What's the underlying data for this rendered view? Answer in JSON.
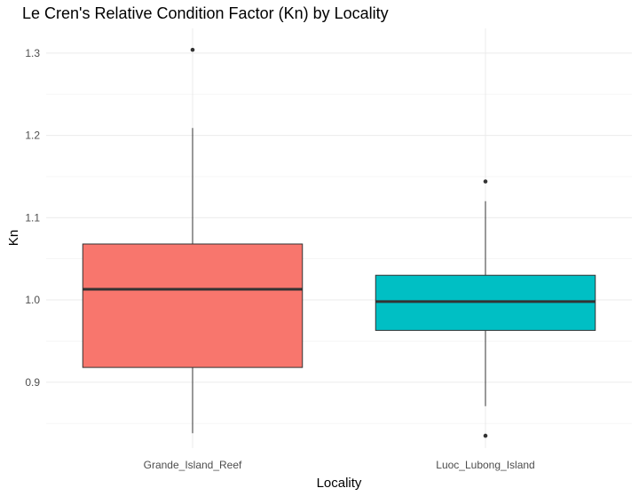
{
  "chart_data": {
    "type": "boxplot",
    "title": "Le Cren's Relative Condition Factor (Kn) by Locality",
    "xlabel": "Locality",
    "ylabel": "Kn",
    "ylim": [
      0.82,
      1.33
    ],
    "yticks": [
      0.9,
      1.0,
      1.1,
      1.2,
      1.3
    ],
    "ytick_labels": [
      "0.9",
      "1.0",
      "1.1",
      "1.2",
      "1.3"
    ],
    "grid": true,
    "legend": "none",
    "categories": [
      "Grande_Island_Reef",
      "Luoc_Lubong_Island"
    ],
    "boxes": [
      {
        "category": "Grande_Island_Reef",
        "whisker_low": 0.838,
        "q1": 0.918,
        "median": 1.013,
        "q3": 1.068,
        "whisker_high": 1.209,
        "outliers": [
          1.304
        ],
        "color": "#F8766D"
      },
      {
        "category": "Luoc_Lubong_Island",
        "whisker_low": 0.871,
        "q1": 0.963,
        "median": 0.998,
        "q3": 1.03,
        "whisker_high": 1.12,
        "outliers": [
          1.144,
          0.835
        ],
        "color": "#00BFC4"
      }
    ]
  }
}
